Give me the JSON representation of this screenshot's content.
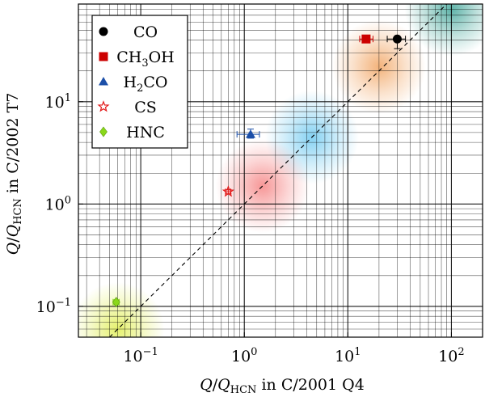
{
  "chart_data": {
    "type": "scatter",
    "xscale": "log",
    "yscale": "log",
    "xlim": [
      0.025,
      200
    ],
    "ylim": [
      0.05,
      90
    ],
    "grid": true,
    "legend_position": "top-left",
    "title": "",
    "xlabel": {
      "q": "Q",
      "slash": "/",
      "q2": "Q",
      "sub": "HCN",
      "rest": " in C/2001 Q4"
    },
    "ylabel": {
      "q": "Q",
      "slash": "/",
      "q2": "Q",
      "sub": "HCN",
      "rest": " in C/2002 T7"
    },
    "x_ticks": [
      {
        "value": 0.1,
        "base": "10",
        "exp": "−1"
      },
      {
        "value": 1,
        "base": "10",
        "exp": "0"
      },
      {
        "value": 10,
        "base": "10",
        "exp": "1"
      },
      {
        "value": 100,
        "base": "10",
        "exp": "2"
      }
    ],
    "y_ticks": [
      {
        "value": 0.1,
        "base": "10",
        "exp": "−1"
      },
      {
        "value": 1,
        "base": "10",
        "exp": "0"
      },
      {
        "value": 10,
        "base": "10",
        "exp": "1"
      }
    ],
    "series": [
      {
        "name": "CO",
        "label_parts": [
          "CO"
        ],
        "marker": "circle",
        "color": "#000000",
        "x": 30,
        "y": 41,
        "x_err": [
          24,
          36
        ],
        "y_err": [
          33,
          41
        ],
        "glow": {
          "x": 100,
          "y": 80,
          "color": "#2a9a8c"
        }
      },
      {
        "name": "CH3OH",
        "label_parts": [
          "CH",
          "3",
          "OH"
        ],
        "marker": "square",
        "color": "#cc0000",
        "x": 15,
        "y": 41,
        "x_err": [
          13,
          17.5
        ],
        "y_err": [
          39,
          43
        ],
        "glow": {
          "x": 20,
          "y": 22,
          "color": "#f09a50"
        }
      },
      {
        "name": "H2CO",
        "label_parts": [
          "H",
          "2",
          "CO"
        ],
        "marker": "triangle",
        "color": "#1c4fa8",
        "x": 1.15,
        "y": 4.8,
        "x_err": [
          0.85,
          1.4
        ],
        "y_err": [
          4.4,
          5.4
        ],
        "glow": {
          "x": 4.5,
          "y": 4.5,
          "color": "#5cc2ee"
        }
      },
      {
        "name": "CS",
        "label_parts": [
          "CS"
        ],
        "marker": "star",
        "color": "#e21818",
        "x": 0.7,
        "y": 1.32,
        "x_err": [
          0.66,
          0.74
        ],
        "y_err": [
          1.26,
          1.38
        ],
        "glow": {
          "x": 1.5,
          "y": 1.5,
          "color": "#f47474"
        }
      },
      {
        "name": "HNC",
        "label_parts": [
          "HNC"
        ],
        "marker": "diamond",
        "color": "#8ad81a",
        "x": 0.058,
        "y": 0.11,
        "x_err": [
          0.054,
          0.062
        ],
        "y_err": [
          0.104,
          0.116
        ],
        "glow": {
          "x": 0.06,
          "y": 0.06,
          "color": "#dcec3c"
        }
      }
    ],
    "identity_line": true,
    "colors": {
      "grid": "#000000",
      "identity": "#000000"
    }
  }
}
